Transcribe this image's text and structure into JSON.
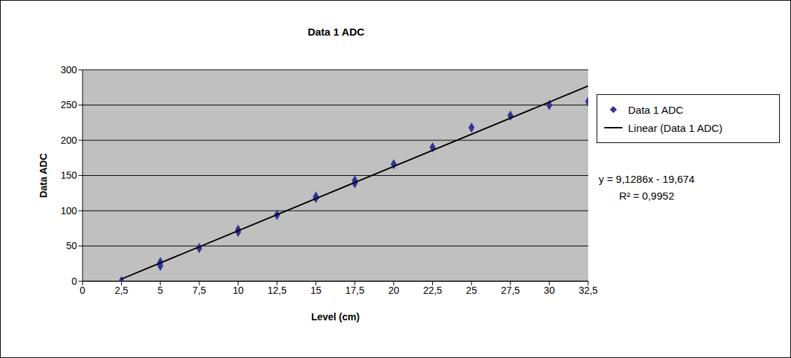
{
  "chart_data": {
    "type": "scatter",
    "title": "Data 1 ADC",
    "x_label": "Level (cm)",
    "y_label": "Data ADC",
    "series": [
      {
        "name": "Data 1 ADC",
        "type": "scatter",
        "color": "#333399",
        "marker": "diamond",
        "x": [
          2.5,
          5,
          5,
          7.5,
          10,
          10,
          12.5,
          15,
          15,
          17.5,
          17.5,
          20,
          22.5,
          25,
          27.5,
          30,
          32.5
        ],
        "values": [
          0,
          27,
          22,
          47,
          73,
          70,
          94,
          120,
          118,
          143,
          139,
          166,
          190,
          218,
          235,
          250,
          255
        ]
      },
      {
        "name": "Linear (Data 1 ADC)",
        "type": "line",
        "color": "#000000",
        "line_style": "solid",
        "x": [
          2.5,
          32.5
        ],
        "values": [
          3.15,
          277.0
        ]
      }
    ],
    "annotations": [
      "y = 9,1286x - 19,674",
      "R² = 0,9952"
    ],
    "xlim": [
      0,
      32.5
    ],
    "xticks": [
      0,
      {
        "value": 2.5,
        "label": "2,5"
      },
      5,
      {
        "value": 7.5,
        "label": "7,5"
      },
      10,
      {
        "value": 12.5,
        "label": "12,5"
      },
      15,
      {
        "value": 17.5,
        "label": "17,5"
      },
      20,
      {
        "value": 22.5,
        "label": "22,5"
      },
      25,
      {
        "value": 27.5,
        "label": "27,5"
      },
      30,
      {
        "value": 32.5,
        "label": "32,5"
      }
    ],
    "ylim": [
      0,
      300
    ],
    "yticks": [
      0,
      50,
      100,
      150,
      200,
      250,
      300
    ],
    "grid": true,
    "legend": "right"
  }
}
